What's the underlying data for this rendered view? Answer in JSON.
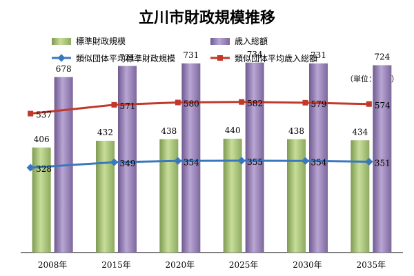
{
  "chart_data": {
    "type": "bar",
    "title": "立川市財政規模推移",
    "unit_label": "（単位：億円）",
    "categories": [
      "2008年",
      "2015年",
      "2020年",
      "2025年",
      "2030年",
      "2035年"
    ],
    "ylim": [
      0,
      800
    ],
    "grid": false,
    "legend_placement": "top",
    "series": [
      {
        "name": "標準財政規模",
        "kind": "bar",
        "color": "#A8C47A",
        "values": [
          406,
          432,
          438,
          440,
          438,
          434
        ]
      },
      {
        "name": "歳入総額",
        "kind": "bar",
        "color": "#9B86B8",
        "values": [
          678,
          721,
          731,
          734,
          731,
          724
        ]
      },
      {
        "name": "類似団体平均標準財政規模",
        "kind": "line",
        "color": "#3A78BE",
        "values": [
          328,
          349,
          354,
          355,
          354,
          351
        ]
      },
      {
        "name": "類似団体平均歳入総額",
        "kind": "line",
        "color": "#C0392B",
        "values": [
          537,
          571,
          580,
          582,
          579,
          574
        ]
      }
    ]
  }
}
